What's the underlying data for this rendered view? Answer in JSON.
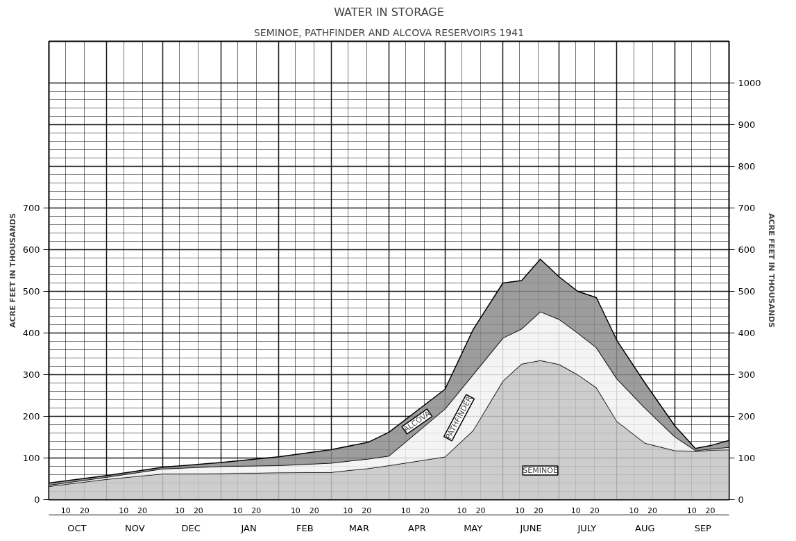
{
  "chart_data": {
    "type": "area",
    "stacked": true,
    "title": "WATER IN STORAGE",
    "subtitle": "SEMINOE, PATHFINDER AND ALCOVA RESERVOIRS 1941",
    "ylabel": "ACRE FEET IN THOUSANDS",
    "y2label": "ACRE FEET IN THOUSANDS",
    "x": [
      "1940-10-01",
      "1940-11-01",
      "1940-12-01",
      "1941-01-01",
      "1941-02-01",
      "1941-03-01",
      "1941-03-21",
      "1941-04-01",
      "1941-05-01",
      "1941-05-16",
      "1941-06-01",
      "1941-06-11",
      "1941-06-21",
      "1941-07-01",
      "1941-07-11",
      "1941-07-21",
      "1941-08-01",
      "1941-08-16",
      "1941-09-01",
      "1941-09-12",
      "1941-09-21",
      "1941-09-30"
    ],
    "series": [
      {
        "name": "SEMINOE",
        "color": "#c4c4c4",
        "values": [
          32,
          49,
          62,
          63,
          65,
          66,
          75,
          82,
          103,
          166,
          285,
          326,
          334,
          325,
          300,
          269,
          188,
          136,
          118,
          116,
          119,
          120
        ]
      },
      {
        "name": "PATHFINDER",
        "color": "#f2f2f2",
        "values": [
          3,
          5,
          12,
          17,
          17,
          22,
          23,
          23,
          115,
          134,
          103,
          84,
          117,
          108,
          100,
          96,
          102,
          84,
          33,
          2,
          3,
          6
        ]
      },
      {
        "name": "ALCOVA",
        "color": "#8c8c8c",
        "values": [
          5,
          4,
          4,
          9,
          21,
          32,
          40,
          57,
          47,
          108,
          132,
          116,
          126,
          102,
          100,
          120,
          92,
          60,
          26,
          5,
          9,
          16
        ]
      }
    ],
    "xlim": [
      "1940-10-01",
      "1941-09-30"
    ],
    "xticks": [
      {
        "value": "1940-10-16",
        "label": "OCT"
      },
      {
        "value": "1940-11-16",
        "label": "NOV"
      },
      {
        "value": "1940-12-16",
        "label": "DEC"
      },
      {
        "value": "1941-01-16",
        "label": "JAN"
      },
      {
        "value": "1941-02-15",
        "label": "FEB"
      },
      {
        "value": "1941-03-16",
        "label": "MAR"
      },
      {
        "value": "1941-04-16",
        "label": "APR"
      },
      {
        "value": "1941-05-16",
        "label": "MAY"
      },
      {
        "value": "1941-06-16",
        "label": "JUNE"
      },
      {
        "value": "1941-07-16",
        "label": "JULY"
      },
      {
        "value": "1941-08-16",
        "label": "AUG"
      },
      {
        "value": "1941-09-16",
        "label": "SEP"
      }
    ],
    "x2lim": [
      "1940-10-01",
      "1941-09-30"
    ],
    "x2ticks": [
      {
        "value": "1940-10-10",
        "label": "10"
      },
      {
        "value": "1940-10-20",
        "label": "20"
      },
      {
        "value": "1940-11-10",
        "label": "10"
      },
      {
        "value": "1940-11-20",
        "label": "20"
      },
      {
        "value": "1940-12-10",
        "label": "10"
      },
      {
        "value": "1940-12-20",
        "label": "20"
      },
      {
        "value": "1941-01-10",
        "label": "10"
      },
      {
        "value": "1941-01-20",
        "label": "20"
      },
      {
        "value": "1941-02-10",
        "label": "10"
      },
      {
        "value": "1941-02-20",
        "label": "20"
      },
      {
        "value": "1941-03-10",
        "label": "10"
      },
      {
        "value": "1941-03-20",
        "label": "20"
      },
      {
        "value": "1941-04-10",
        "label": "10"
      },
      {
        "value": "1941-04-20",
        "label": "20"
      },
      {
        "value": "1941-05-10",
        "label": "10"
      },
      {
        "value": "1941-05-20",
        "label": "20"
      },
      {
        "value": "1941-06-10",
        "label": "10"
      },
      {
        "value": "1941-06-20",
        "label": "20"
      },
      {
        "value": "1941-07-10",
        "label": "10"
      },
      {
        "value": "1941-07-20",
        "label": "20"
      },
      {
        "value": "1941-08-10",
        "label": "10"
      },
      {
        "value": "1941-08-20",
        "label": "20"
      },
      {
        "value": "1941-09-10",
        "label": "10"
      },
      {
        "value": "1941-09-20",
        "label": "20"
      }
    ],
    "ylim": [
      0,
      1100
    ],
    "yticks": [
      0,
      100,
      200,
      300,
      400,
      500,
      600,
      700
    ],
    "y2lim": [
      0,
      1100
    ],
    "y2ticks": [
      0,
      100,
      200,
      300,
      400,
      500,
      600,
      700,
      800,
      900,
      1000
    ],
    "grid": true
  }
}
